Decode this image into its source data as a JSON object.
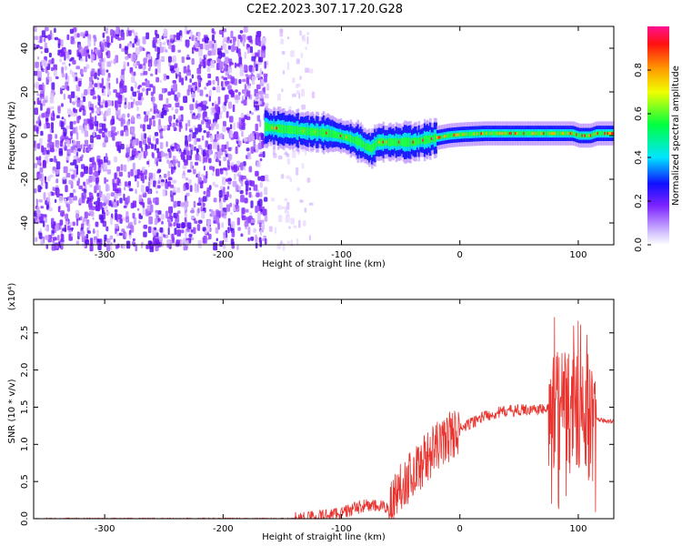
{
  "title": "C2E2.2023.307.17.20.G28",
  "chart_data": [
    {
      "type": "heatmap",
      "xlabel": "Height of straight line (km)",
      "ylabel": "Frequency (Hz)",
      "xlim": [
        -360,
        130
      ],
      "ylim": [
        -50,
        50
      ],
      "xticks": [
        -300,
        -200,
        -100,
        0,
        100
      ],
      "yticks": [
        -40,
        -20,
        0,
        20,
        40
      ],
      "colorbar": {
        "label": "Normalized spectral amplitude",
        "range": [
          0.0,
          1.0
        ],
        "ticks": [
          "0.0",
          "0.2",
          "0.4",
          "0.6",
          "0.8"
        ]
      },
      "ridge": {
        "x": [
          -165,
          -150,
          -130,
          -110,
          -95,
          -85,
          -80,
          -75,
          -70,
          -60,
          -50,
          -40,
          -30,
          -20,
          -10,
          0,
          20,
          50,
          80,
          90,
          95,
          100,
          110,
          115,
          130
        ],
        "freq": [
          4,
          3,
          2,
          1,
          -1,
          -3,
          -5,
          -6,
          -3,
          -3,
          -3,
          -3,
          -2,
          -1,
          0,
          0.5,
          1,
          1,
          1,
          1,
          1,
          0,
          0,
          1,
          1
        ]
      }
    },
    {
      "type": "line",
      "xlabel": "Height of straight line (km)",
      "ylabel": "SNR (10 * v/v)",
      "multiplier": "(x10⁴)",
      "xlim": [
        -360,
        130
      ],
      "ylim": [
        0,
        2.95
      ],
      "xticks": [
        -300,
        -200,
        -100,
        0,
        100
      ],
      "yticks": [
        "0.0",
        "0.5",
        "1.0",
        "1.5",
        "2.0",
        "2.5"
      ],
      "color": "#e8332e",
      "trend": {
        "x": [
          -360,
          -140,
          -120,
          -100,
          -80,
          -60,
          -50,
          -40,
          -30,
          -20,
          -10,
          0,
          20,
          40,
          60,
          80,
          100,
          110,
          115,
          130
        ],
        "y": [
          0.0,
          0.0,
          0.03,
          0.08,
          0.18,
          0.15,
          0.45,
          0.6,
          0.8,
          0.95,
          1.1,
          1.2,
          1.38,
          1.45,
          1.47,
          1.47,
          1.45,
          1.35,
          1.33,
          1.31
        ]
      }
    }
  ]
}
